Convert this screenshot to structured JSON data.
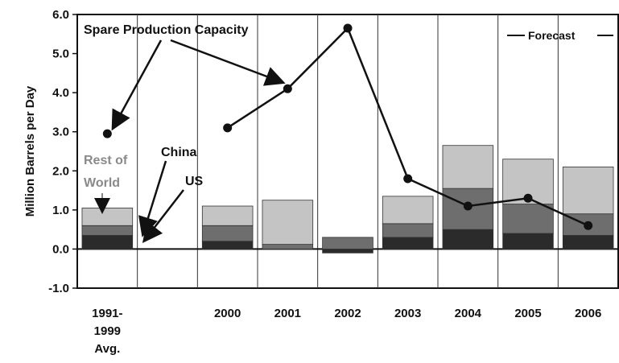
{
  "chart_data": {
    "type": "bar",
    "ylabel": "Million Barrels per Day",
    "ylim": [
      -1.0,
      6.0
    ],
    "yticks": [
      "6.0",
      "5.0",
      "4.0",
      "3.0",
      "2.0",
      "1.0",
      "0.0",
      "-1.0"
    ],
    "categories": [
      "1991-\n1999\nAvg.",
      "",
      "2000",
      "2001",
      "2002",
      "2003",
      "2004",
      "2005",
      "2006"
    ],
    "stack_series": [
      {
        "name": "US",
        "values": [
          0.35,
          null,
          0.2,
          0.0,
          -0.1,
          0.3,
          0.5,
          0.4,
          0.35
        ],
        "color": "#2b2b2b"
      },
      {
        "name": "China",
        "values": [
          0.25,
          null,
          0.4,
          0.12,
          0.3,
          0.35,
          1.05,
          0.75,
          0.55
        ],
        "color": "#6e6e6e"
      },
      {
        "name": "Rest of World",
        "values": [
          0.45,
          null,
          0.5,
          1.13,
          0.0,
          0.7,
          1.1,
          1.15,
          1.2
        ],
        "color": "#c4c4c4"
      }
    ],
    "line_series": {
      "name": "Spare Production Capacity",
      "points": [
        {
          "x": "1991-1999 Avg.",
          "y": 2.95
        },
        {
          "x": "2000",
          "y": 3.1
        },
        {
          "x": "2001",
          "y": 4.1
        },
        {
          "x": "2002",
          "y": 5.65
        },
        {
          "x": "2003",
          "y": 1.8
        },
        {
          "x": "2004",
          "y": 1.1
        },
        {
          "x": "2005",
          "y": 1.3
        },
        {
          "x": "2006",
          "y": 0.6
        }
      ]
    },
    "annotations": {
      "spare": "Spare Production Capacity",
      "rest": [
        "Rest of",
        "World"
      ],
      "china": "China",
      "us": "US"
    },
    "legend": "Forecast"
  }
}
